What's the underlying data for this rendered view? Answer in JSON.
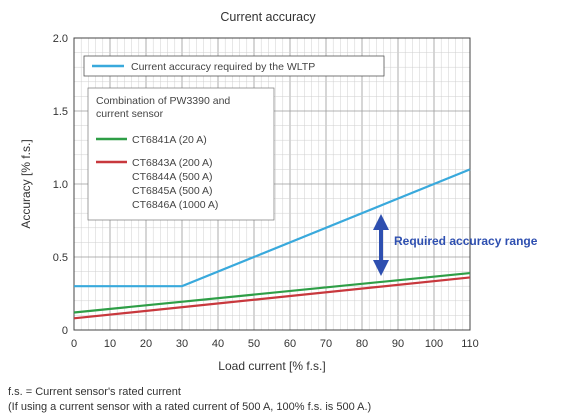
{
  "chart_data": {
    "type": "line",
    "title": "Current accuracy",
    "xlabel": "Load current [% f.s.]",
    "ylabel": "Accuracy [% f.s.]",
    "xlim": [
      0,
      110
    ],
    "ylim": [
      0,
      2.0
    ],
    "xticks": [
      "0",
      "10",
      "20",
      "30",
      "40",
      "50",
      "60",
      "70",
      "80",
      "90",
      "100",
      "110"
    ],
    "yticks": [
      "0",
      "0.5",
      "1.0",
      "1.5",
      "2.0"
    ],
    "grid": true,
    "series": [
      {
        "name": "Current accuracy required by the WLTP",
        "color": "#39a9dc",
        "points": [
          [
            0,
            0.3
          ],
          [
            30,
            0.3
          ],
          [
            110,
            1.1
          ]
        ]
      },
      {
        "name": "CT6841A (20 A)",
        "color": "#2e9e46",
        "points": [
          [
            0,
            0.12
          ],
          [
            110,
            0.39
          ]
        ]
      },
      {
        "name": "CT6843A (200 A)",
        "color": "#c8383d",
        "points": [
          [
            0,
            0.08
          ],
          [
            110,
            0.36
          ]
        ]
      }
    ],
    "legend": {
      "top_entry": "Current accuracy required by the WLTP",
      "group_title_lines": [
        "Combination of PW3390 and",
        "current sensor"
      ],
      "entries": [
        "CT6841A (20 A)",
        "CT6843A (200 A)"
      ],
      "extra_lines": [
        "CT6844A (500 A)",
        "CT6845A (500 A)",
        "CT6846A (1000 A)"
      ]
    },
    "annotation": {
      "text": "Required accuracy range",
      "color": "#2e4fb0"
    }
  },
  "footnotes": {
    "line1": "f.s. = Current sensor's rated current",
    "line2": "(If using a current sensor with a rated current of 500 A, 100% f.s. is 500 A.)"
  }
}
